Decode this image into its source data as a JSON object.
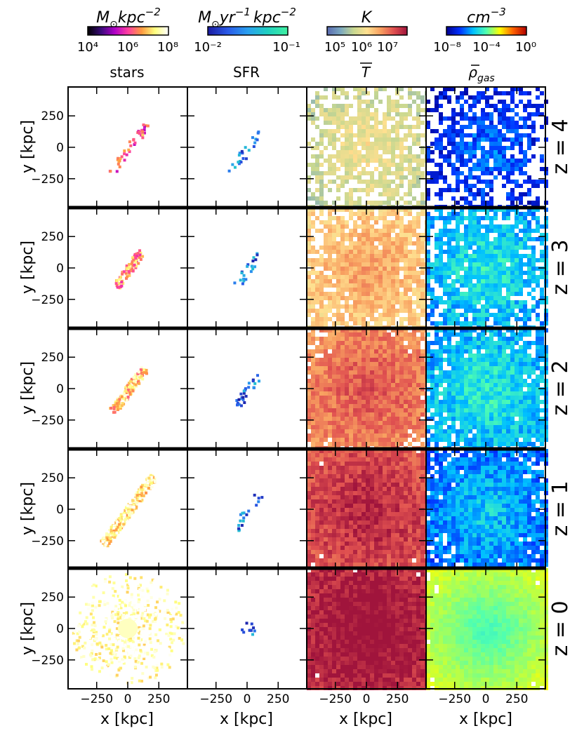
{
  "chart_data": {
    "type": "heatmap",
    "description_rows": "z",
    "panels_grid": {
      "rows": 5,
      "cols": 4
    },
    "colorbars": [
      {
        "title": "M⊙kpc⁻²",
        "title_base": "M",
        "title_sub": "⊙",
        "title_rest": "kpc",
        "title_sup": "−2",
        "tick_labels": [
          "10⁴",
          "10⁶",
          "10⁸"
        ],
        "range": [
          10000,
          100000000
        ],
        "scale": "log",
        "colors": [
          "#000000",
          "#3a0a7a",
          "#b000c8",
          "#ff3fa0",
          "#ff9a40",
          "#ffff80",
          "#ffffff"
        ]
      },
      {
        "title": "M⊙yr⁻¹kpc⁻²",
        "title_base": "M",
        "title_sub": "⊙",
        "title_rest": "yr",
        "title_sup": "−1",
        "title_rest2": "kpc",
        "title_sup2": "−2",
        "tick_labels": [
          "10⁻²",
          "10⁻¹"
        ],
        "range": [
          0.01,
          0.1
        ],
        "scale": "log",
        "colors": [
          "#1a1aa0",
          "#2a5ae8",
          "#2aa0f0",
          "#20d0c0",
          "#40f0a0"
        ]
      },
      {
        "title": "K",
        "tick_labels": [
          "10⁵",
          "10⁶",
          "10⁷"
        ],
        "range": [
          100000,
          10000000
        ],
        "scale": "log",
        "colors": [
          "#5a6ab0",
          "#7aa8c0",
          "#c8d890",
          "#ffe090",
          "#f8a060",
          "#e05050",
          "#a0143c"
        ]
      },
      {
        "title": "cm⁻³",
        "title_base": "cm",
        "title_sup": "−3",
        "tick_labels": [
          "10⁻⁸",
          "10⁻⁴",
          "10⁰"
        ],
        "range": [
          1e-08,
          1
        ],
        "scale": "log",
        "colors": [
          "#00008f",
          "#0030ff",
          "#00c0ff",
          "#50ffb0",
          "#ffff00",
          "#ff6000",
          "#b00000"
        ]
      }
    ],
    "column_titles": [
      "stars",
      "SFR",
      "T",
      "ρgas"
    ],
    "column_title_parts": {
      "T": {
        "base": "T",
        "overline": true
      },
      "rho": {
        "base": "ρ",
        "overline": true,
        "sub": "gas"
      }
    },
    "row_labels": [
      "z = 4",
      "z = 3",
      "z = 2",
      "z = 1",
      "z = 0"
    ],
    "xlabel": "x [kpc]",
    "ylabel": "y [kpc]",
    "x_ticks": [
      -250,
      0,
      250
    ],
    "y_ticks": [
      250,
      0,
      -250
    ],
    "x_tick_labels": [
      "−250",
      "0",
      "250"
    ],
    "y_tick_labels": [
      "250",
      "0",
      "−250"
    ],
    "xlim": [
      -480,
      480
    ],
    "ylim": [
      -480,
      480
    ]
  }
}
